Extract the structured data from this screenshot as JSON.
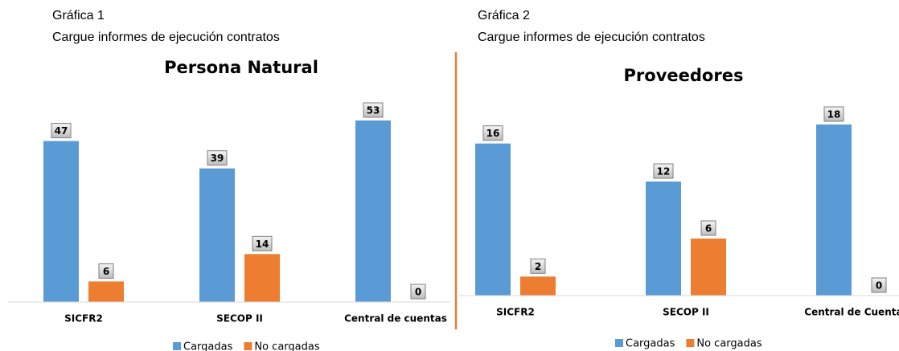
{
  "chart_data": [
    {
      "type": "bar",
      "label": "Gráfica 1",
      "subtitle": "Cargue informes de ejecución contratos",
      "title": "Persona Natural",
      "categories": [
        "SICFR2",
        "SECOP II",
        "Central de cuentas"
      ],
      "series": [
        {
          "name": "Cargadas",
          "color": "#5b9bd5",
          "values": [
            47,
            39,
            53
          ]
        },
        {
          "name": "No cargadas",
          "color": "#ed7d31",
          "values": [
            6,
            14,
            0
          ]
        }
      ]
    },
    {
      "type": "bar",
      "label": "Gráfica 2",
      "subtitle": "Cargue informes de ejecución contratos",
      "title": "Proveedores",
      "categories": [
        "SICFR2",
        "SECOP II",
        "Central de Cuentas"
      ],
      "series": [
        {
          "name": "Cargadas",
          "color": "#5b9bd5",
          "values": [
            16,
            12,
            18
          ]
        },
        {
          "name": "No cargadas",
          "color": "#ed7d31",
          "values": [
            2,
            6,
            0
          ]
        }
      ]
    }
  ]
}
